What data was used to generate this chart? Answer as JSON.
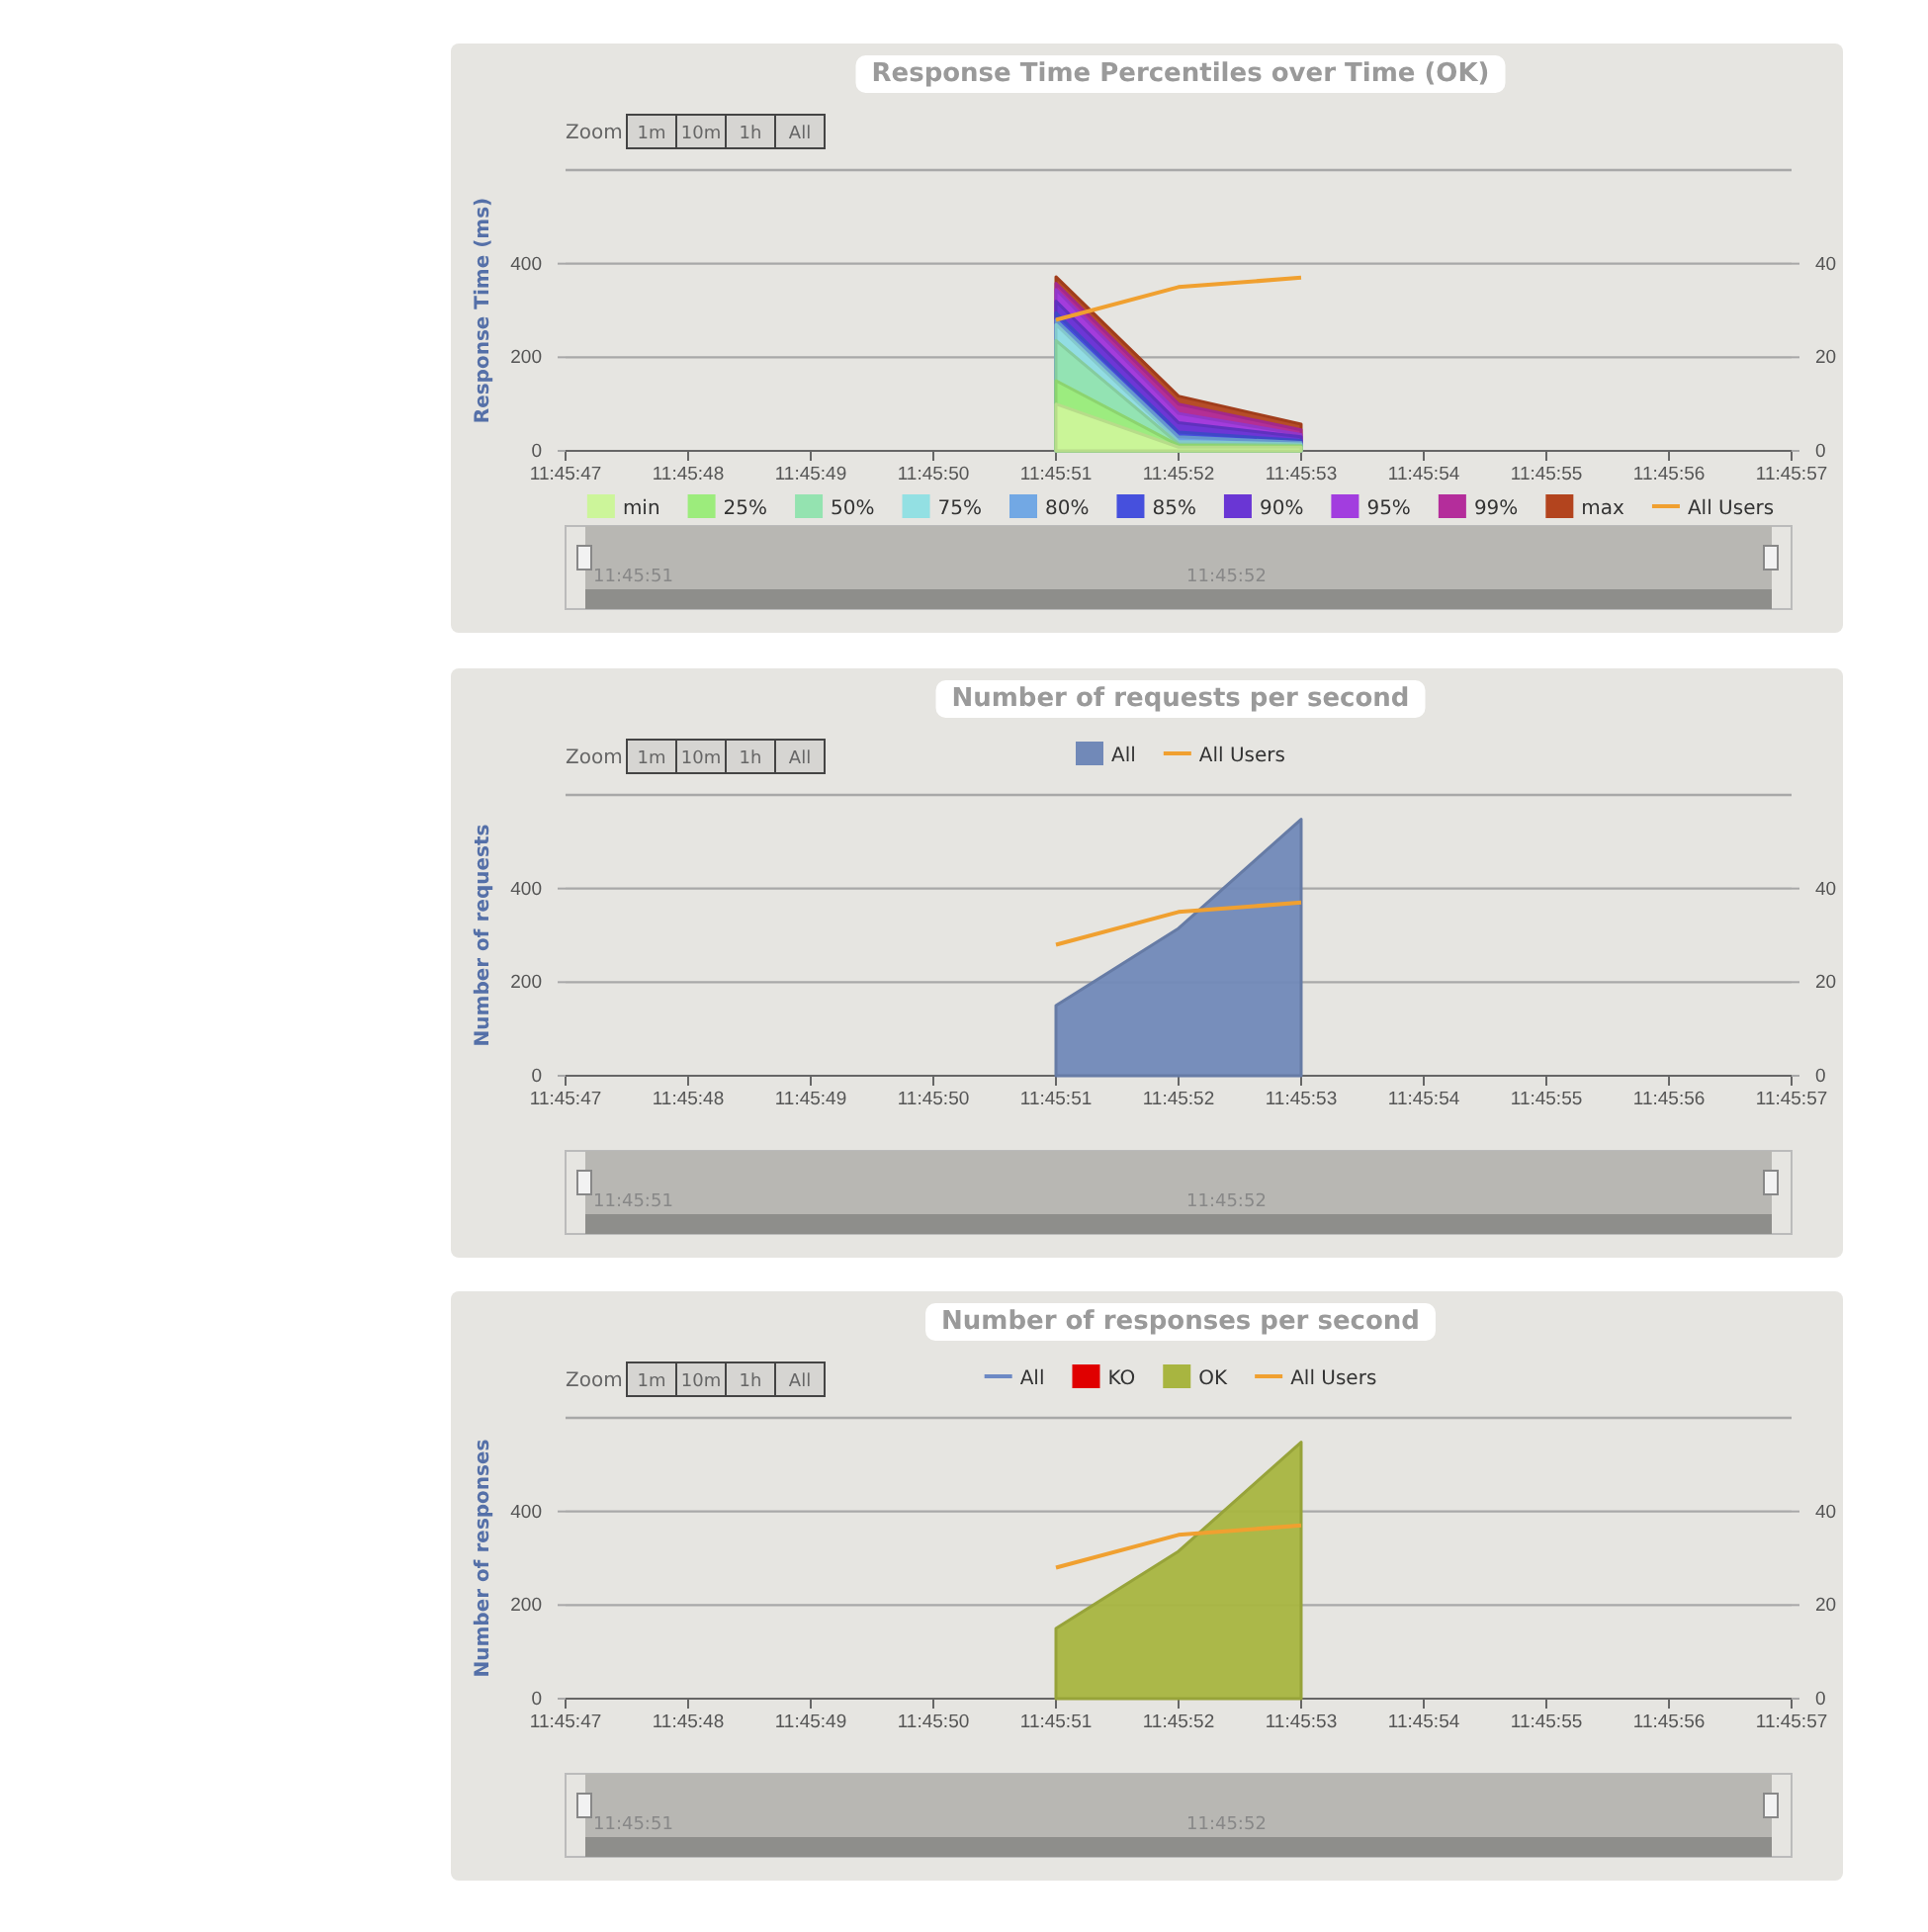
{
  "chart_data": [
    {
      "type": "area",
      "title": "Response Time Percentiles over Time (OK)",
      "ylabel": "Response Time (ms)",
      "legend": "bottom",
      "grid": "y",
      "x": [
        11.7641667,
        11.7644444,
        11.7647222
      ],
      "xlim": [
        11.7630556,
        11.7658333
      ],
      "xticks": [
        {
          "value": 11.7630556,
          "label": "11:45:47"
        },
        {
          "value": 11.7633333,
          "label": "11:45:48"
        },
        {
          "value": 11.7636111,
          "label": "11:45:49"
        },
        {
          "value": 11.7638889,
          "label": "11:45:50"
        },
        {
          "value": 11.7641667,
          "label": "11:45:51"
        },
        {
          "value": 11.7644444,
          "label": "11:45:52"
        },
        {
          "value": 11.7647222,
          "label": "11:45:53"
        },
        {
          "value": 11.765,
          "label": "11:45:54"
        },
        {
          "value": 11.7652778,
          "label": "11:45:55"
        },
        {
          "value": 11.7655556,
          "label": "11:45:56"
        },
        {
          "value": 11.7658333,
          "label": "11:45:57"
        }
      ],
      "ylim": [
        0,
        600
      ],
      "yticks": [
        0,
        200,
        400
      ],
      "y2lim": [
        0,
        60
      ],
      "y2ticks": [
        0,
        20,
        40
      ],
      "annotations": [
        "Zoom",
        "1m",
        "10m",
        "1h",
        "All",
        "11:45:51",
        "11:45:52"
      ],
      "series": [
        {
          "name": "min",
          "color": "#ccf59a",
          "values": [
            100,
            8,
            8
          ]
        },
        {
          "name": "25%",
          "color": "#9cec7c",
          "values": [
            150,
            12,
            10
          ]
        },
        {
          "name": "50%",
          "color": "#94e3b0",
          "values": [
            236,
            15,
            12
          ]
        },
        {
          "name": "75%",
          "color": "#93e0e3",
          "values": [
            270,
            20,
            15
          ]
        },
        {
          "name": "80%",
          "color": "#72a8e4",
          "values": [
            280,
            30,
            18
          ]
        },
        {
          "name": "85%",
          "color": "#4650dd",
          "values": [
            295,
            40,
            22
          ]
        },
        {
          "name": "90%",
          "color": "#6a36d4",
          "values": [
            320,
            60,
            30
          ]
        },
        {
          "name": "95%",
          "color": "#a23ddf",
          "values": [
            345,
            80,
            35
          ]
        },
        {
          "name": "99%",
          "color": "#b42d9b",
          "values": [
            358,
            100,
            45
          ]
        },
        {
          "name": "max",
          "color": "#b3441e",
          "values": [
            372,
            117,
            57
          ]
        },
        {
          "name": "All Users",
          "type": "line",
          "axis": "y2",
          "color": "#f0a030",
          "values": [
            28,
            35,
            37
          ]
        }
      ]
    },
    {
      "type": "area",
      "title": "Number of requests per second",
      "ylabel": "Number of requests",
      "legend": "top",
      "grid": "y",
      "x": [
        11.7641667,
        11.7644444,
        11.7647222
      ],
      "xlim": [
        11.7630556,
        11.7658333
      ],
      "xticks": [
        {
          "value": 11.7630556,
          "label": "11:45:47"
        },
        {
          "value": 11.7633333,
          "label": "11:45:48"
        },
        {
          "value": 11.7636111,
          "label": "11:45:49"
        },
        {
          "value": 11.7638889,
          "label": "11:45:50"
        },
        {
          "value": 11.7641667,
          "label": "11:45:51"
        },
        {
          "value": 11.7644444,
          "label": "11:45:52"
        },
        {
          "value": 11.7647222,
          "label": "11:45:53"
        },
        {
          "value": 11.765,
          "label": "11:45:54"
        },
        {
          "value": 11.7652778,
          "label": "11:45:55"
        },
        {
          "value": 11.7655556,
          "label": "11:45:56"
        },
        {
          "value": 11.7658333,
          "label": "11:45:57"
        }
      ],
      "ylim": [
        0,
        600
      ],
      "yticks": [
        0,
        200,
        400
      ],
      "y2lim": [
        0,
        60
      ],
      "y2ticks": [
        0,
        20,
        40
      ],
      "annotations": [
        "Zoom",
        "1m",
        "10m",
        "1h",
        "All",
        "11:45:51",
        "11:45:52"
      ],
      "series": [
        {
          "name": "All",
          "color": "#7189b8",
          "values": [
            150,
            315,
            548
          ]
        },
        {
          "name": "All Users",
          "type": "line",
          "axis": "y2",
          "color": "#f0a030",
          "values": [
            28,
            35,
            37
          ]
        }
      ]
    },
    {
      "type": "area",
      "title": "Number of responses per second",
      "ylabel": "Number of responses",
      "legend": "top",
      "grid": "y",
      "x": [
        11.7641667,
        11.7644444,
        11.7647222
      ],
      "xlim": [
        11.7630556,
        11.7658333
      ],
      "xticks": [
        {
          "value": 11.7630556,
          "label": "11:45:47"
        },
        {
          "value": 11.7633333,
          "label": "11:45:48"
        },
        {
          "value": 11.7636111,
          "label": "11:45:49"
        },
        {
          "value": 11.7638889,
          "label": "11:45:50"
        },
        {
          "value": 11.7641667,
          "label": "11:45:51"
        },
        {
          "value": 11.7644444,
          "label": "11:45:52"
        },
        {
          "value": 11.7647222,
          "label": "11:45:53"
        },
        {
          "value": 11.765,
          "label": "11:45:54"
        },
        {
          "value": 11.7652778,
          "label": "11:45:55"
        },
        {
          "value": 11.7655556,
          "label": "11:45:56"
        },
        {
          "value": 11.7658333,
          "label": "11:45:57"
        }
      ],
      "ylim": [
        0,
        600
      ],
      "yticks": [
        0,
        200,
        400
      ],
      "y2lim": [
        0,
        60
      ],
      "y2ticks": [
        0,
        20,
        40
      ],
      "annotations": [
        "Zoom",
        "1m",
        "10m",
        "1h",
        "All",
        "11:45:51",
        "11:45:52"
      ],
      "series": [
        {
          "name": "All",
          "type": "line",
          "color": "#6d89c4",
          "values": [
            null,
            null,
            null
          ]
        },
        {
          "name": "KO",
          "color": "#e00000",
          "values": [
            null,
            null,
            null
          ]
        },
        {
          "name": "OK",
          "color": "#a8b540",
          "values": [
            150,
            315,
            548
          ]
        },
        {
          "name": "All Users",
          "type": "line",
          "axis": "y2",
          "color": "#f0a030",
          "values": [
            28,
            35,
            37
          ]
        }
      ]
    }
  ]
}
